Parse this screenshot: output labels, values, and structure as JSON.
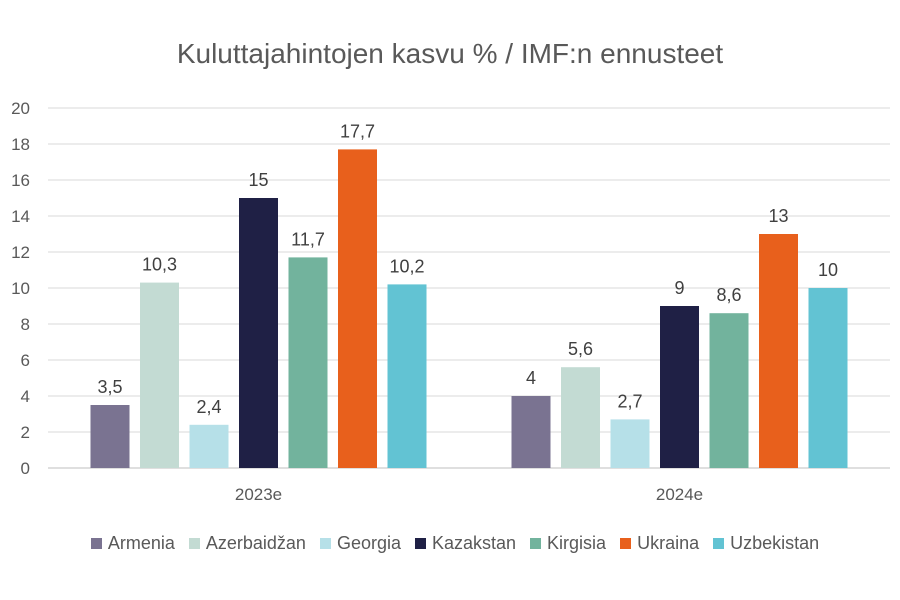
{
  "chart_data": {
    "type": "bar",
    "title": "Kuluttajahintojen kasvu % / IMF:n ennusteet",
    "categories": [
      "2023e",
      "2024e"
    ],
    "series": [
      {
        "name": "Armenia",
        "values": [
          3.5,
          4
        ],
        "labels": [
          "3,5",
          "4"
        ],
        "color": "#7a7391"
      },
      {
        "name": "Azerbaidžan",
        "values": [
          10.3,
          5.6
        ],
        "labels": [
          "10,3",
          "5,6"
        ],
        "color": "#c3dbd3"
      },
      {
        "name": "Georgia",
        "values": [
          2.4,
          2.7
        ],
        "labels": [
          "2,4",
          "2,7"
        ],
        "color": "#b6e0e8"
      },
      {
        "name": "Kazakstan",
        "values": [
          15,
          9
        ],
        "labels": [
          "15",
          "9"
        ],
        "color": "#1f2045"
      },
      {
        "name": "Kirgisia",
        "values": [
          11.7,
          8.6
        ],
        "labels": [
          "11,7",
          "8,6"
        ],
        "color": "#72b39d"
      },
      {
        "name": "Ukraina",
        "values": [
          17.7,
          13
        ],
        "labels": [
          "17,7",
          "13"
        ],
        "color": "#e8601c"
      },
      {
        "name": "Uzbekistan",
        "values": [
          10.2,
          10
        ],
        "labels": [
          "10,2",
          "10"
        ],
        "color": "#62c3d3"
      }
    ],
    "xlabel": "",
    "ylabel": "",
    "ylim": [
      0,
      20
    ],
    "yticks": [
      0,
      2,
      4,
      6,
      8,
      10,
      12,
      14,
      16,
      18,
      20
    ],
    "grid": true,
    "legend": "bottom"
  }
}
